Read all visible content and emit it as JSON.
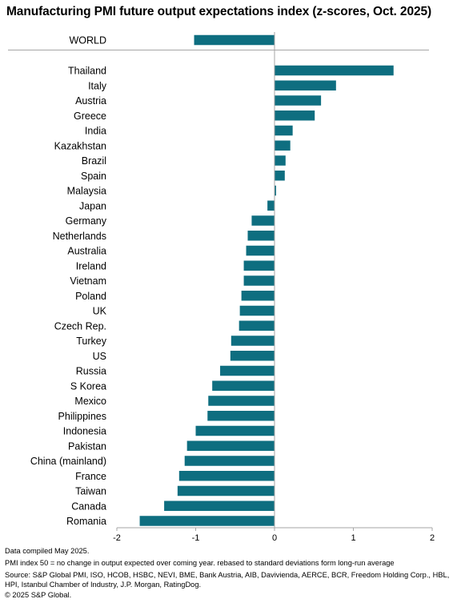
{
  "chart_data": {
    "type": "bar",
    "orientation": "horizontal",
    "title": "Manufacturing PMI future output expectations index (z-scores, Oct. 2025)",
    "world": {
      "label": "WORLD",
      "value": -1.02
    },
    "categories": [
      "Thailand",
      "Italy",
      "Austria",
      "Greece",
      "India",
      "Kazakhstan",
      "Brazil",
      "Spain",
      "Malaysia",
      "Japan",
      "Germany",
      "Netherlands",
      "Australia",
      "Ireland",
      "Vietnam",
      "Poland",
      "UK",
      "Czech Rep.",
      "Turkey",
      "US",
      "Russia",
      "S Korea",
      "Mexico",
      "Philippines",
      "Indonesia",
      "Pakistan",
      "China (mainland)",
      "France",
      "Taiwan",
      "Canada",
      "Romania"
    ],
    "values": [
      1.51,
      0.78,
      0.59,
      0.51,
      0.23,
      0.2,
      0.14,
      0.13,
      0.02,
      -0.09,
      -0.29,
      -0.34,
      -0.36,
      -0.39,
      -0.39,
      -0.42,
      -0.44,
      -0.45,
      -0.55,
      -0.56,
      -0.69,
      -0.79,
      -0.84,
      -0.85,
      -1.0,
      -1.11,
      -1.14,
      -1.21,
      -1.23,
      -1.4,
      -1.71
    ],
    "xlim": [
      -2,
      2
    ],
    "xticks": [
      "-2",
      "-1",
      "0",
      "1",
      "2"
    ],
    "bar_color": "#0e6e80",
    "grid": false
  },
  "notes": {
    "compiled": "Data compiled May 2025.",
    "pmi": "PMI index 50 = no change in output expected over coming year. rebased to standard deviations form long-run average",
    "source": "Source: S&P Global PMI, ISO, HCOB, HSBC, NEVI, BME, Bank Austria, AIB, Davivienda, AERCE, BCR, Freedom Holding Corp., HBL, HPI, Istanbul Chamber of Industry, J.P. Morgan, RatingDog.",
    "copyright": "© 2025 S&P Global."
  }
}
